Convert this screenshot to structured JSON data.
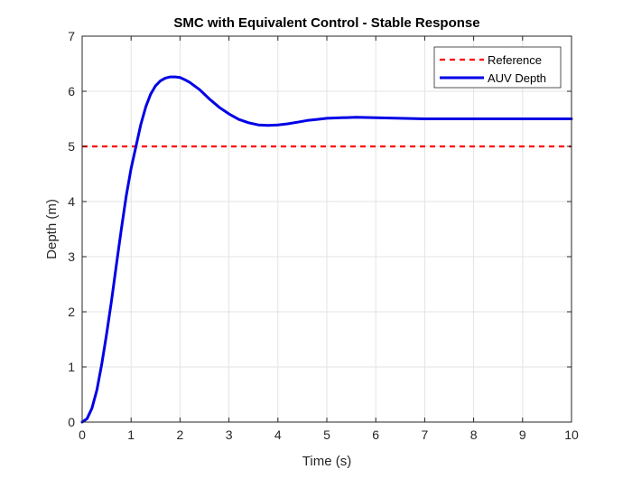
{
  "chart_data": {
    "type": "line",
    "title": "SMC with Equivalent Control - Stable Response",
    "xlabel": "Time (s)",
    "ylabel": "Depth (m)",
    "xlim": [
      0,
      10
    ],
    "ylim": [
      0,
      7
    ],
    "xticks": [
      0,
      1,
      2,
      3,
      4,
      5,
      6,
      7,
      8,
      9,
      10
    ],
    "yticks": [
      0,
      1,
      2,
      3,
      4,
      5,
      6,
      7
    ],
    "grid": true,
    "legend_position": "top-right",
    "series": [
      {
        "name": "Reference",
        "style": "dashed",
        "color": "#ff0000",
        "x": [
          0,
          10
        ],
        "y": [
          5,
          5
        ]
      },
      {
        "name": "AUV Depth",
        "style": "solid",
        "color": "#0000e6",
        "x": [
          0,
          0.1,
          0.2,
          0.3,
          0.4,
          0.5,
          0.6,
          0.7,
          0.8,
          0.9,
          1.0,
          1.1,
          1.2,
          1.3,
          1.4,
          1.5,
          1.6,
          1.7,
          1.8,
          1.9,
          2.0,
          2.1,
          2.2,
          2.4,
          2.6,
          2.8,
          3.0,
          3.2,
          3.4,
          3.6,
          3.8,
          4.0,
          4.2,
          4.4,
          4.6,
          4.8,
          5.0,
          5.3,
          5.6,
          6.0,
          6.5,
          7.0,
          7.5,
          8.0,
          8.5,
          9.0,
          9.5,
          10.0
        ],
        "y": [
          0,
          0.06,
          0.25,
          0.58,
          1.05,
          1.6,
          2.2,
          2.85,
          3.5,
          4.1,
          4.6,
          5.0,
          5.4,
          5.72,
          5.95,
          6.1,
          6.19,
          6.24,
          6.26,
          6.26,
          6.25,
          6.21,
          6.16,
          6.03,
          5.86,
          5.71,
          5.59,
          5.49,
          5.43,
          5.39,
          5.38,
          5.39,
          5.41,
          5.44,
          5.47,
          5.49,
          5.51,
          5.52,
          5.53,
          5.52,
          5.51,
          5.5,
          5.5,
          5.5,
          5.5,
          5.5,
          5.5,
          5.5
        ]
      }
    ]
  }
}
